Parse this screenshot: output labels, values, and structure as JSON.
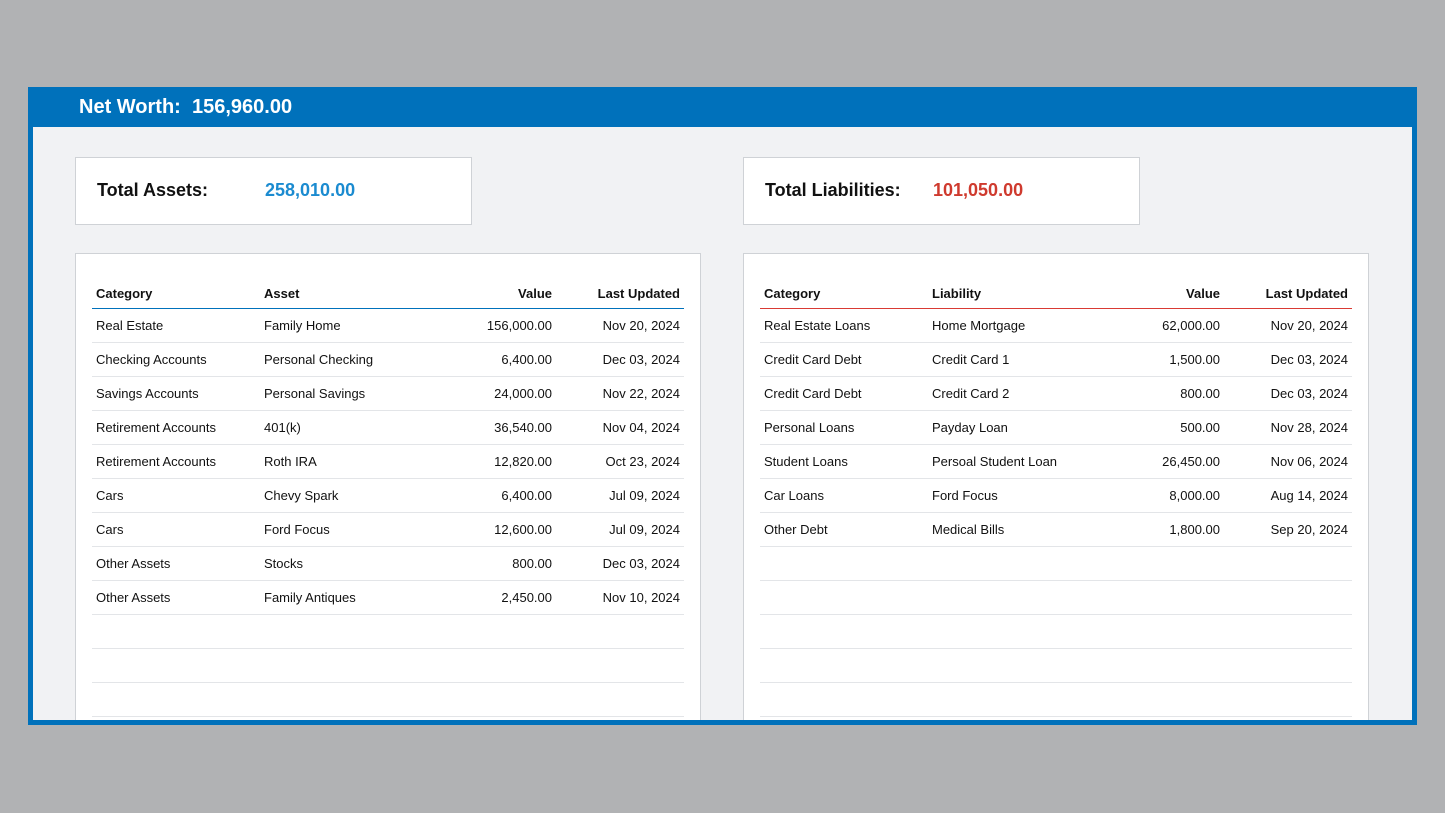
{
  "header": {
    "title_label": "Net Worth:",
    "title_value": "156,960.00"
  },
  "assets_summary": {
    "label": "Total Assets:",
    "value": "258,010.00",
    "value_color": "#1b8bd0"
  },
  "liabilities_summary": {
    "label": "Total Liabilities:",
    "value": "101,050.00",
    "value_color": "#cf3a2e"
  },
  "assets_table": {
    "columns": [
      "Category",
      "Asset",
      "Value",
      "Last Updated"
    ],
    "rows": [
      [
        "Real Estate",
        "Family Home",
        "156,000.00",
        "Nov 20, 2024"
      ],
      [
        "Checking Accounts",
        "Personal Checking",
        "6,400.00",
        "Dec 03, 2024"
      ],
      [
        "Savings Accounts",
        "Personal Savings",
        "24,000.00",
        "Nov 22, 2024"
      ],
      [
        "Retirement Accounts",
        "401(k)",
        "36,540.00",
        "Nov 04, 2024"
      ],
      [
        "Retirement Accounts",
        "Roth IRA",
        "12,820.00",
        "Oct 23, 2024"
      ],
      [
        "Cars",
        "Chevy Spark",
        "6,400.00",
        "Jul 09, 2024"
      ],
      [
        "Cars",
        "Ford Focus",
        "12,600.00",
        "Jul 09, 2024"
      ],
      [
        "Other Assets",
        "Stocks",
        "800.00",
        "Dec 03, 2024"
      ],
      [
        "Other Assets",
        "Family Antiques",
        "2,450.00",
        "Nov 10, 2024"
      ],
      [
        "",
        "",
        "",
        ""
      ],
      [
        "",
        "",
        "",
        ""
      ],
      [
        "",
        "",
        "",
        ""
      ],
      [
        "",
        "",
        "",
        ""
      ]
    ]
  },
  "liabilities_table": {
    "columns": [
      "Category",
      "Liability",
      "Value",
      "Last Updated"
    ],
    "rows": [
      [
        "Real Estate Loans",
        "Home Mortgage",
        "62,000.00",
        "Nov 20, 2024"
      ],
      [
        "Credit Card Debt",
        "Credit Card 1",
        "1,500.00",
        "Dec 03, 2024"
      ],
      [
        "Credit Card Debt",
        "Credit Card 2",
        "800.00",
        "Dec 03, 2024"
      ],
      [
        "Personal Loans",
        "Payday Loan",
        "500.00",
        "Nov 28, 2024"
      ],
      [
        "Student Loans",
        "Persoal Student Loan",
        "26,450.00",
        "Nov 06, 2024"
      ],
      [
        "Car Loans",
        "Ford Focus",
        "8,000.00",
        "Aug 14, 2024"
      ],
      [
        "Other Debt",
        "Medical Bills",
        "1,800.00",
        "Sep 20, 2024"
      ],
      [
        "",
        "",
        "",
        ""
      ],
      [
        "",
        "",
        "",
        ""
      ],
      [
        "",
        "",
        "",
        ""
      ],
      [
        "",
        "",
        "",
        ""
      ],
      [
        "",
        "",
        "",
        ""
      ],
      [
        "",
        "",
        "",
        ""
      ]
    ]
  }
}
